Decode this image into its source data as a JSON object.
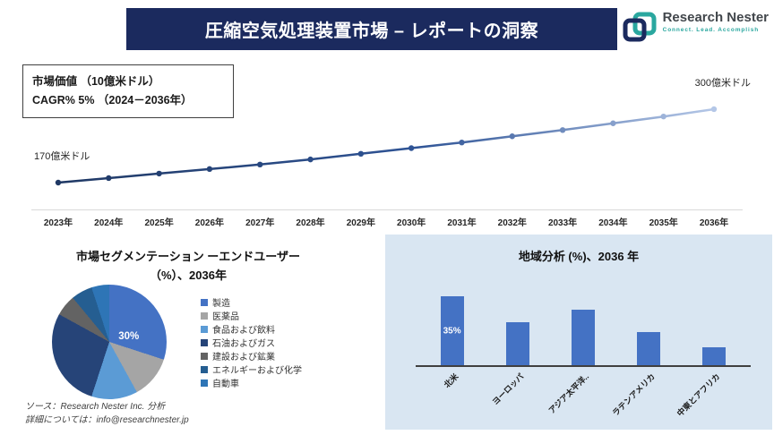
{
  "header": {
    "title": "圧縮空気処理装置市場 – レポートの洞察",
    "bar_color": "#1b2a5e"
  },
  "logo": {
    "name": "Research Nester",
    "tagline": "Connect. Lead. Accomplish",
    "brand_navy": "#1b2a5e",
    "brand_teal": "#2aa79f"
  },
  "metric_box": {
    "line1": "市場価値 （10億米ドル）",
    "line2": "CAGR% 5% （2024－2036年）"
  },
  "chart_data": [
    {
      "id": "market-value-line",
      "type": "line",
      "title": "市場価値（10億米ドル）",
      "x": [
        "2023年",
        "2024年",
        "2025年",
        "2026年",
        "2027年",
        "2028年",
        "2029年",
        "2030年",
        "2031年",
        "2032年",
        "2033年",
        "2034年",
        "2035年",
        "2036年"
      ],
      "values": [
        170,
        178,
        186,
        194,
        202,
        211,
        221,
        231,
        241,
        252,
        263,
        275,
        287,
        300
      ],
      "unit": "億米ドル",
      "start_label": "170億米ドル",
      "end_label": "300億米ドル",
      "ylim": [
        150,
        320
      ],
      "line_color_start": "#1f3864",
      "line_color_mid": "#2f5496",
      "line_color_end": "#b4c7e7",
      "grid": false
    },
    {
      "id": "end-user-pie",
      "type": "pie",
      "title_line1": "市場セグメンテーション ーエンドユーザー",
      "title_line2": "（%）、2036年",
      "labels": [
        "製造",
        "医薬品",
        "食品および飲料",
        "石油およびガス",
        "建設および鉱業",
        "エネルギーおよび化学",
        "自動車"
      ],
      "values": [
        30,
        12,
        13,
        28,
        6,
        6,
        5
      ],
      "colors": [
        "#4472c4",
        "#a5a5a5",
        "#5b9bd5",
        "#264478",
        "#636363",
        "#255e91",
        "#2e75b6"
      ],
      "shown_label": "30%",
      "legend_position": "right"
    },
    {
      "id": "regional-bar",
      "type": "bar",
      "title": "地域分析 (%)、2036 年",
      "categories": [
        "北米",
        "ヨーロッパ",
        "アジア太平洋..",
        "ラテンアメリカ",
        "中東とアフリカ"
      ],
      "values": [
        35,
        22,
        28,
        17,
        9
      ],
      "data_labels": [
        "35%",
        "",
        "",
        "",
        ""
      ],
      "bar_color": "#4472c4",
      "panel_color": "#d9e6f2",
      "ylim": [
        0,
        40
      ]
    }
  ],
  "footer": {
    "line1": "ソース：Research Nester Inc. 分析",
    "line2": "詳細については：info@researchnester.jp"
  }
}
